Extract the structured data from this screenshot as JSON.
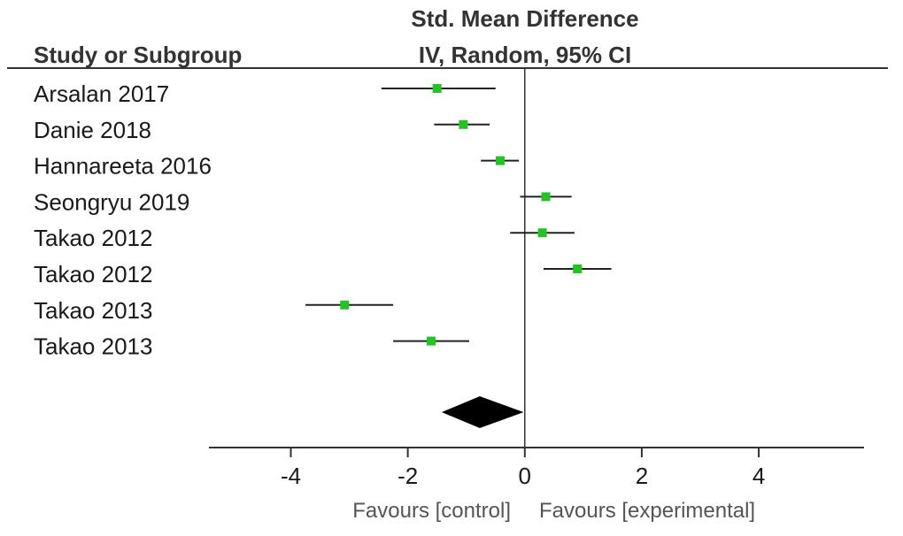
{
  "chart_data": {
    "type": "forest",
    "header": {
      "study_column": "Study or Subgroup",
      "effect_title": "Std. Mean Difference",
      "effect_method": "IV, Random, 95% CI"
    },
    "studies": [
      {
        "name": "Arsalan 2017",
        "estimate": -1.5,
        "ci_low": -2.45,
        "ci_high": -0.5
      },
      {
        "name": "Danie 2018",
        "estimate": -1.05,
        "ci_low": -1.55,
        "ci_high": -0.6
      },
      {
        "name": "Hannareeta 2016",
        "estimate": -0.42,
        "ci_low": -0.75,
        "ci_high": -0.1
      },
      {
        "name": "Seongryu 2019",
        "estimate": 0.36,
        "ci_low": -0.08,
        "ci_high": 0.8
      },
      {
        "name": "Takao 2012",
        "estimate": 0.3,
        "ci_low": -0.25,
        "ci_high": 0.85
      },
      {
        "name": "Takao 2012",
        "estimate": 0.9,
        "ci_low": 0.32,
        "ci_high": 1.48
      },
      {
        "name": "Takao 2013",
        "estimate": -3.08,
        "ci_low": -3.75,
        "ci_high": -2.25
      },
      {
        "name": "Takao 2013",
        "estimate": -1.6,
        "ci_low": -2.25,
        "ci_high": -0.95
      }
    ],
    "pooled": {
      "estimate": -0.77,
      "ci_low": -1.42,
      "ci_high": -0.02
    },
    "xlim": [
      -5.4,
      5.8
    ],
    "xticks": [
      -4,
      -2,
      0,
      2,
      4
    ],
    "xtick_labels": [
      "-4",
      "-2",
      "0",
      "2",
      "4"
    ],
    "favours_left": "Favours [control]",
    "favours_right": "Favours [experimental]",
    "marker_color": "#22c322",
    "diamond_color": "#000000"
  }
}
